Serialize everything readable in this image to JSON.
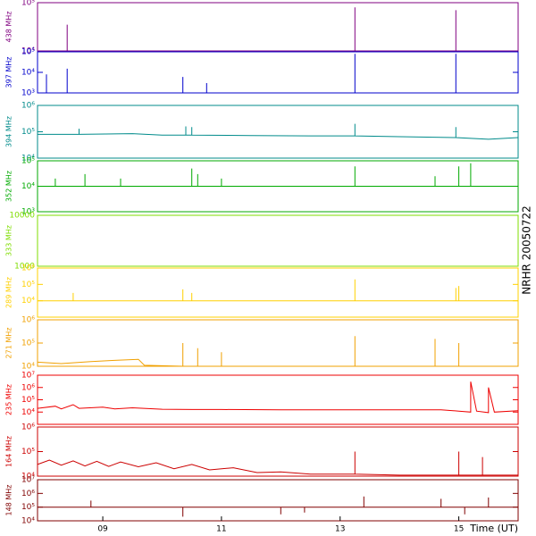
{
  "annotation": "NRHR 20050722",
  "chart_data": [
    {
      "type": "line",
      "ylabel": "438 MHz",
      "color": "#800080",
      "log_y": true,
      "xlim": [
        7.9,
        16.0
      ],
      "ylim": [
        10000,
        100000
      ],
      "yticks": [
        {
          "value": 10000,
          "label": "10⁴"
        },
        {
          "value": 100000,
          "label": "10⁵"
        }
      ],
      "x": [
        7.9,
        8.4,
        8.4,
        8.4,
        13.25,
        13.25,
        13.25,
        14.95,
        14.95,
        14.95,
        16.0
      ],
      "values": [
        10000,
        10000,
        35000,
        10000,
        10000,
        80000,
        10000,
        10000,
        70000,
        10000,
        10000
      ]
    },
    {
      "type": "line",
      "ylabel": "397 MHz",
      "color": "#0000cc",
      "log_y": true,
      "xlim": [
        7.9,
        16.0
      ],
      "ylim": [
        1000,
        100000
      ],
      "yticks": [
        {
          "value": 1000,
          "label": "10³"
        },
        {
          "value": 10000,
          "label": "10⁴"
        },
        {
          "value": 100000,
          "label": "10⁵"
        }
      ],
      "x": [
        7.9,
        8.05,
        8.05,
        8.05,
        8.4,
        8.4,
        8.4,
        10.35,
        10.35,
        10.35,
        10.75,
        10.75,
        10.75,
        13.25,
        13.25,
        13.25,
        14.95,
        14.95,
        14.95,
        16.0
      ],
      "values": [
        1000,
        1000,
        8000,
        1000,
        1000,
        15000,
        1000,
        1000,
        6000,
        1000,
        1000,
        3000,
        1000,
        1000,
        80000,
        1000,
        1000,
        80000,
        1000,
        1000
      ]
    },
    {
      "type": "line",
      "ylabel": "394 MHz",
      "color": "#008b8b",
      "log_y": true,
      "xlim": [
        7.9,
        16.0
      ],
      "ylim": [
        10000,
        1000000
      ],
      "yticks": [
        {
          "value": 10000,
          "label": "10⁴"
        },
        {
          "value": 100000,
          "label": "10⁵"
        },
        {
          "value": 1000000,
          "label": "10⁶"
        }
      ],
      "x": [
        7.9,
        8.6,
        8.6,
        8.6,
        9.5,
        10.0,
        10.4,
        10.4,
        10.4,
        10.5,
        10.5,
        10.5,
        11.5,
        12.5,
        13.25,
        13.25,
        13.25,
        14.0,
        14.95,
        14.95,
        14.95,
        15.5,
        16.0
      ],
      "values": [
        80000,
        80000,
        130000,
        80000,
        85000,
        75000,
        75000,
        160000,
        75000,
        75000,
        150000,
        75000,
        72000,
        70000,
        70000,
        200000,
        70000,
        65000,
        60000,
        150000,
        60000,
        52000,
        60000
      ]
    },
    {
      "type": "line",
      "ylabel": "352 MHz",
      "color": "#00aa00",
      "log_y": true,
      "xlim": [
        7.9,
        16.0
      ],
      "ylim": [
        1000,
        100000
      ],
      "yticks": [
        {
          "value": 1000,
          "label": "10³"
        },
        {
          "value": 10000,
          "label": "10⁴"
        },
        {
          "value": 100000,
          "label": "10⁵"
        }
      ],
      "x": [
        7.9,
        8.2,
        8.2,
        8.2,
        8.7,
        8.7,
        8.7,
        9.3,
        9.3,
        9.3,
        10.5,
        10.5,
        10.5,
        10.6,
        10.6,
        10.6,
        11.0,
        11.0,
        11.0,
        13.25,
        13.25,
        13.25,
        14.6,
        14.6,
        14.6,
        15.0,
        15.0,
        15.0,
        15.2,
        15.2,
        15.2,
        16.0
      ],
      "values": [
        10000,
        10000,
        20000,
        10000,
        10000,
        30000,
        10000,
        10000,
        20000,
        10000,
        10000,
        50000,
        10000,
        10000,
        30000,
        10000,
        10000,
        20000,
        10000,
        10000,
        60000,
        10000,
        10000,
        25000,
        10000,
        10000,
        60000,
        10000,
        10000,
        80000,
        10000,
        10000
      ]
    },
    {
      "type": "line",
      "ylabel": "333 MHz",
      "color": "#7fdd00",
      "log_y": true,
      "xlim": [
        7.9,
        16.0
      ],
      "ylim": [
        1000,
        10000
      ],
      "yticks": [
        1000,
        10000
      ],
      "x": [
        7.9,
        16.0
      ],
      "values": [
        1000,
        1000
      ]
    },
    {
      "type": "line",
      "ylabel": "289 MHz",
      "color": "#ffd000",
      "log_y": true,
      "xlim": [
        7.9,
        16.0
      ],
      "ylim": [
        1000,
        1000000
      ],
      "yticks": [
        {
          "value": 10000,
          "label": "10⁴"
        },
        {
          "value": 100000,
          "label": "10⁵"
        },
        {
          "value": 1000000,
          "label": "10⁶"
        }
      ],
      "x": [
        7.9,
        8.5,
        8.5,
        8.5,
        10.35,
        10.35,
        10.35,
        10.5,
        10.5,
        10.5,
        13.25,
        13.25,
        13.25,
        14.95,
        14.95,
        14.95,
        15.0,
        15.0,
        15.0,
        16.0
      ],
      "values": [
        10000,
        10000,
        30000,
        10000,
        10000,
        50000,
        10000,
        10000,
        30000,
        10000,
        10000,
        200000,
        10000,
        10000,
        60000,
        10000,
        10000,
        80000,
        10000,
        10000
      ]
    },
    {
      "type": "line",
      "ylabel": "271 MHz",
      "color": "#f0a000",
      "log_y": true,
      "xlim": [
        7.9,
        16.0
      ],
      "ylim": [
        10000,
        1000000
      ],
      "yticks": [
        {
          "value": 10000,
          "label": "10⁴"
        },
        {
          "value": 100000,
          "label": "10⁵"
        },
        {
          "value": 1000000,
          "label": "10⁶"
        }
      ],
      "x": [
        7.9,
        8.3,
        8.8,
        9.2,
        9.6,
        9.7,
        10.35,
        10.35,
        10.35,
        10.6,
        10.6,
        10.6,
        11.0,
        11.0,
        11.0,
        13.25,
        13.25,
        13.25,
        14.6,
        14.6,
        14.6,
        15.0,
        15.0,
        15.0,
        16.0
      ],
      "values": [
        15000,
        13000,
        16000,
        18000,
        20000,
        11000,
        10000,
        100000,
        10000,
        10000,
        60000,
        10000,
        10000,
        40000,
        10000,
        10000,
        200000,
        10000,
        10000,
        150000,
        10000,
        10000,
        100000,
        10000,
        10000
      ]
    },
    {
      "type": "line",
      "ylabel": "235 MHz",
      "color": "#ee0000",
      "log_y": true,
      "xlim": [
        7.9,
        16.0
      ],
      "ylim": [
        1000,
        10000000
      ],
      "yticks": [
        {
          "value": 10000,
          "label": "10⁴"
        },
        {
          "value": 100000,
          "label": "10⁵"
        },
        {
          "value": 1000000,
          "label": "10⁶"
        },
        {
          "value": 10000000,
          "label": "10⁷"
        }
      ],
      "x": [
        7.9,
        8.2,
        8.3,
        8.5,
        8.6,
        9.0,
        9.2,
        9.5,
        10.0,
        10.5,
        11.0,
        12.0,
        13.0,
        14.0,
        14.7,
        15.0,
        15.2,
        15.2,
        15.3,
        15.5,
        15.5,
        15.6,
        16.0
      ],
      "values": [
        20000,
        30000,
        18000,
        40000,
        20000,
        25000,
        18000,
        22000,
        17000,
        16000,
        16000,
        15000,
        15000,
        15000,
        15000,
        12000,
        10000,
        3000000,
        12000,
        9000,
        1000000,
        10000,
        13000
      ]
    },
    {
      "type": "line",
      "ylabel": "164 MHz",
      "color": "#cc0000",
      "log_y": true,
      "xlim": [
        7.9,
        16.0
      ],
      "ylim": [
        10000,
        1000000
      ],
      "yticks": [
        {
          "value": 10000,
          "label": "10⁴"
        },
        {
          "value": 100000,
          "label": "10⁵"
        },
        {
          "value": 1000000,
          "label": "10⁶"
        }
      ],
      "x": [
        7.9,
        8.1,
        8.3,
        8.5,
        8.7,
        8.9,
        9.1,
        9.3,
        9.6,
        9.9,
        10.2,
        10.5,
        10.8,
        11.2,
        11.6,
        12.0,
        12.5,
        13.0,
        13.25,
        13.25,
        13.25,
        14.0,
        15.0,
        15.0,
        15.0,
        15.4,
        15.4,
        15.4,
        16.0
      ],
      "values": [
        30000,
        45000,
        28000,
        42000,
        26000,
        40000,
        25000,
        38000,
        24000,
        35000,
        20000,
        30000,
        18000,
        22000,
        14000,
        15000,
        12000,
        12000,
        12000,
        100000,
        12000,
        11000,
        11000,
        100000,
        11000,
        11000,
        60000,
        11000,
        11000
      ]
    },
    {
      "type": "line",
      "ylabel": "148 MHz",
      "color": "#800000",
      "log_y": true,
      "xlim": [
        7.9,
        16.0
      ],
      "ylim": [
        10000,
        10000000
      ],
      "yticks": [
        {
          "value": 10000,
          "label": "10⁴"
        },
        {
          "value": 100000,
          "label": "10⁵"
        },
        {
          "value": 1000000,
          "label": "10⁶"
        },
        {
          "value": 10000000,
          "label": "10⁷"
        }
      ],
      "xticks": [
        {
          "value": 9,
          "label": "09"
        },
        {
          "value": 11,
          "label": "11"
        },
        {
          "value": 13,
          "label": "13"
        },
        {
          "value": 15,
          "label": "15"
        }
      ],
      "xlabel": "Time (UT)",
      "x": [
        7.9,
        8.8,
        8.8,
        8.8,
        10.35,
        10.35,
        10.35,
        12.0,
        12.0,
        12.0,
        12.4,
        12.4,
        12.4,
        13.4,
        13.4,
        13.4,
        14.7,
        14.7,
        14.7,
        15.1,
        15.1,
        15.1,
        15.5,
        15.5,
        15.5,
        16.0
      ],
      "values": [
        100000,
        100000,
        300000,
        100000,
        100000,
        20000,
        100000,
        100000,
        30000,
        100000,
        100000,
        40000,
        100000,
        100000,
        600000,
        100000,
        100000,
        400000,
        100000,
        100000,
        30000,
        100000,
        100000,
        500000,
        100000,
        100000
      ]
    }
  ]
}
